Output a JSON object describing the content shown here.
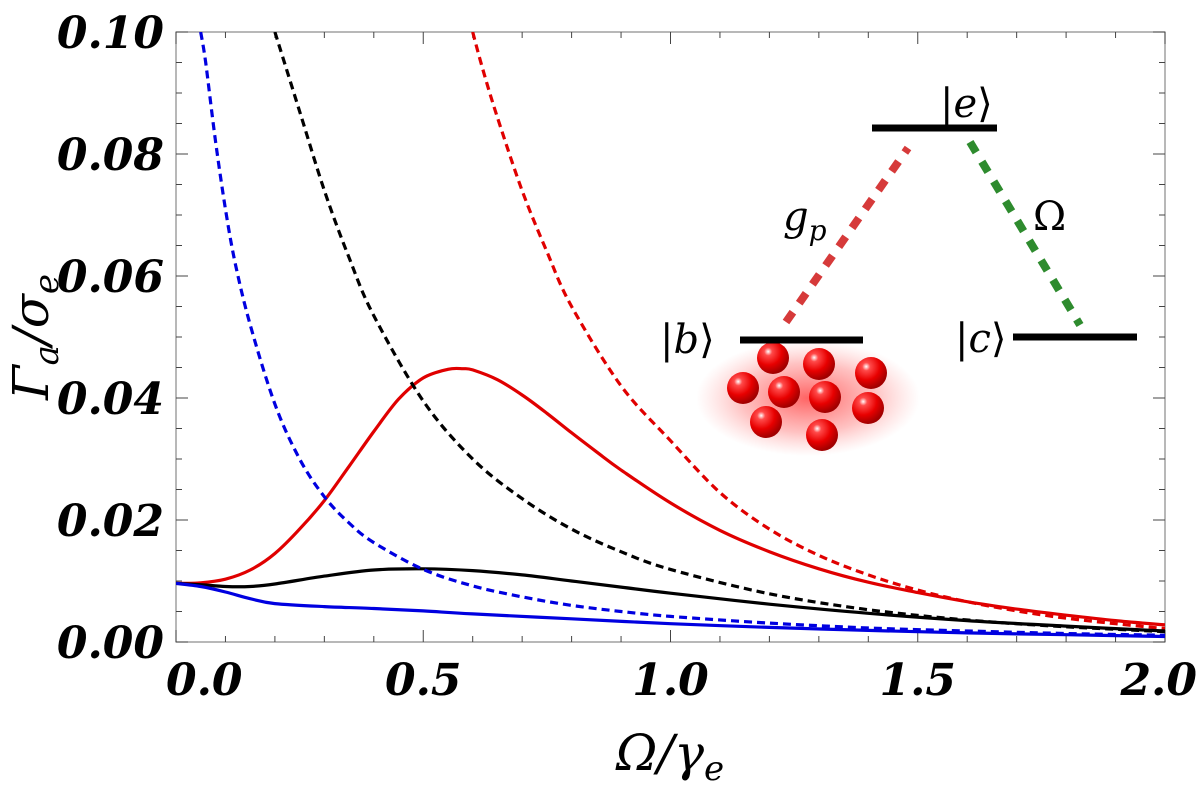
{
  "chart_data": {
    "type": "line",
    "title": "",
    "xlabel": {
      "main": "Ω",
      "sep": "/",
      "sym": "γ",
      "sub": "e"
    },
    "ylabel": {
      "main": "Γ",
      "sub1": "a",
      "sep": "/",
      "sym": "σ",
      "sub2": "e"
    },
    "xlim": [
      0,
      2.0
    ],
    "ylim": [
      0,
      0.1
    ],
    "x_ticks": [
      0.0,
      0.5,
      1.0,
      1.5,
      2.0
    ],
    "x_tick_labels": [
      "0.0",
      "0.5",
      "1.0",
      "1.5",
      "2.0"
    ],
    "y_ticks": [
      0.0,
      0.02,
      0.04,
      0.06,
      0.08,
      0.1
    ],
    "y_tick_labels": [
      "0.00",
      "0.02",
      "0.04",
      "0.06",
      "0.08",
      "0.10"
    ],
    "grid": false,
    "series": [
      {
        "color": "#e00000",
        "style": "solid",
        "x": [
          0,
          0.05,
          0.1,
          0.15,
          0.2,
          0.25,
          0.3,
          0.35,
          0.4,
          0.45,
          0.5,
          0.55,
          0.58,
          0.6,
          0.65,
          0.7,
          0.75,
          0.8,
          0.85,
          0.9,
          1.0,
          1.1,
          1.2,
          1.3,
          1.4,
          1.5,
          1.6,
          1.7,
          1.8,
          1.9,
          2.0
        ],
        "y": [
          0.0096,
          0.0097,
          0.0103,
          0.0118,
          0.0145,
          0.0185,
          0.0232,
          0.0288,
          0.0345,
          0.0398,
          0.0433,
          0.0447,
          0.0448,
          0.0446,
          0.043,
          0.0405,
          0.0375,
          0.0343,
          0.0312,
          0.0282,
          0.0228,
          0.0183,
          0.0148,
          0.012,
          0.0098,
          0.0081,
          0.0066,
          0.0054,
          0.0044,
          0.0035,
          0.0028
        ]
      },
      {
        "color": "#e00000",
        "style": "dashed",
        "x": [
          0.6,
          0.62,
          0.65,
          0.7,
          0.75,
          0.8,
          0.9,
          1.0,
          1.1,
          1.2,
          1.3,
          1.4,
          1.5,
          1.6,
          1.7,
          1.8,
          1.9,
          2.0
        ],
        "y": [
          0.1,
          0.094,
          0.086,
          0.074,
          0.064,
          0.055,
          0.042,
          0.033,
          0.0245,
          0.0185,
          0.0142,
          0.011,
          0.0085,
          0.0066,
          0.0051,
          0.0039,
          0.003,
          0.0022
        ]
      },
      {
        "color": "#000000",
        "style": "solid",
        "x": [
          0,
          0.05,
          0.1,
          0.15,
          0.2,
          0.3,
          0.4,
          0.5,
          0.6,
          0.7,
          0.8,
          0.9,
          1.0,
          1.2,
          1.4,
          1.6,
          1.8,
          2.0
        ],
        "y": [
          0.0096,
          0.0094,
          0.0091,
          0.0091,
          0.0095,
          0.0108,
          0.0118,
          0.012,
          0.0117,
          0.011,
          0.01,
          0.009,
          0.008,
          0.0062,
          0.0047,
          0.0035,
          0.0026,
          0.0018
        ]
      },
      {
        "color": "#000000",
        "style": "dashed",
        "x": [
          0.2,
          0.25,
          0.3,
          0.35,
          0.4,
          0.5,
          0.6,
          0.7,
          0.8,
          0.9,
          1.0,
          1.2,
          1.4,
          1.6,
          1.8,
          2.0
        ],
        "y": [
          0.1,
          0.087,
          0.074,
          0.063,
          0.0535,
          0.0395,
          0.03,
          0.0235,
          0.0185,
          0.0148,
          0.0119,
          0.0079,
          0.0053,
          0.0036,
          0.0025,
          0.0017
        ]
      },
      {
        "color": "#0000e0",
        "style": "solid",
        "x": [
          0,
          0.05,
          0.1,
          0.15,
          0.2,
          0.3,
          0.4,
          0.5,
          0.6,
          0.8,
          1.0,
          1.2,
          1.4,
          1.6,
          1.8,
          2.0
        ],
        "y": [
          0.0096,
          0.0091,
          0.0082,
          0.0071,
          0.0063,
          0.0058,
          0.0055,
          0.0051,
          0.0046,
          0.0038,
          0.003,
          0.0024,
          0.0019,
          0.0015,
          0.0012,
          0.0009
        ]
      },
      {
        "color": "#0000e0",
        "style": "dashed",
        "x": [
          0.05,
          0.06,
          0.08,
          0.1,
          0.12,
          0.15,
          0.2,
          0.25,
          0.3,
          0.35,
          0.4,
          0.5,
          0.6,
          0.7,
          0.8,
          0.9,
          1.0,
          1.2,
          1.4,
          1.6,
          1.8,
          2.0
        ],
        "y": [
          0.1,
          0.095,
          0.082,
          0.071,
          0.062,
          0.052,
          0.039,
          0.03,
          0.0238,
          0.0195,
          0.0163,
          0.0119,
          0.0092,
          0.0074,
          0.006,
          0.005,
          0.0042,
          0.0031,
          0.0023,
          0.0018,
          0.0014,
          0.0011
        ]
      }
    ],
    "annotations": {
      "levels": [
        {
          "id": "e",
          "label": "e"
        },
        {
          "id": "b",
          "label": "b"
        },
        {
          "id": "c",
          "label": "c"
        }
      ],
      "couplings": [
        {
          "symbol": "g",
          "sub": "p",
          "color": "#d63a3a"
        },
        {
          "symbol": "Ω",
          "sub": "",
          "color": "#2e8b2e"
        }
      ],
      "atom_cloud": {
        "count": 9,
        "color": "#ee0000"
      }
    }
  }
}
